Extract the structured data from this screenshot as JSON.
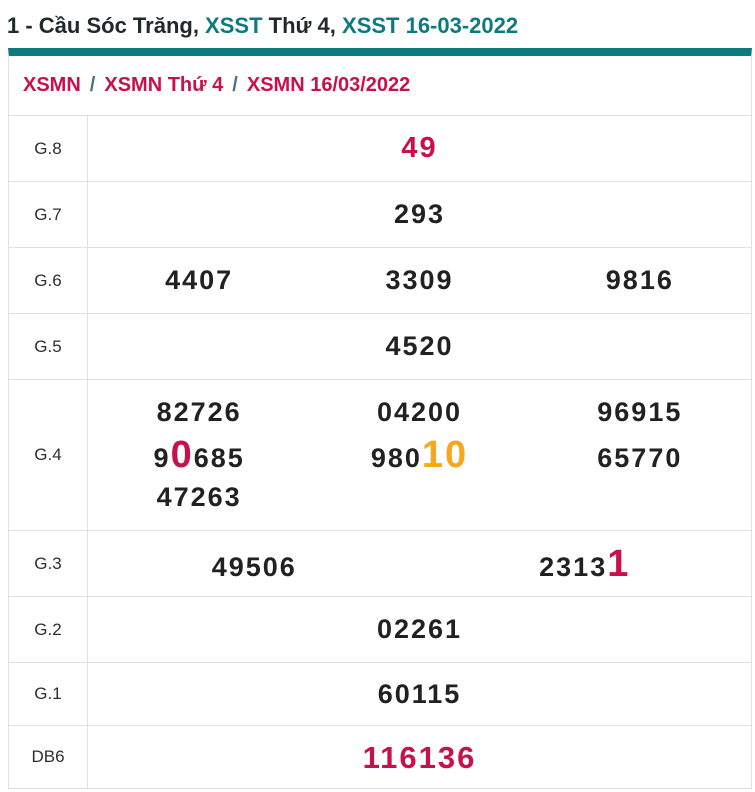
{
  "title": {
    "prefix": "1 - Cầu Sóc Trăng, ",
    "link1": "XSST",
    "middle": " Thứ 4, ",
    "link2": "XSST 16-03-2022"
  },
  "breadcrumb": {
    "items": [
      "XSMN",
      "XSMN Thứ 4",
      "XSMN 16/03/2022"
    ],
    "separator": "/"
  },
  "results": {
    "g8": {
      "label": "G.8",
      "value": "49"
    },
    "g7": {
      "label": "G.7",
      "value": "293"
    },
    "g6": {
      "label": "G.6",
      "v1": "4407",
      "v2": "3309",
      "v3": "9816"
    },
    "g5": {
      "label": "G.5",
      "value": "4520"
    },
    "g4": {
      "label": "G.4",
      "v1": "82726",
      "v2": "04200",
      "v3": "96915",
      "v4_pre": "9",
      "v4_hl": "0",
      "v4_post": "685",
      "v5_pre": "980",
      "v5_hl": "10",
      "v6": "65770",
      "v7": "47263"
    },
    "g3": {
      "label": "G.3",
      "v1": "49506",
      "v2_pre": "2313",
      "v2_hl": "1"
    },
    "g2": {
      "label": "G.2",
      "value": "02261"
    },
    "g1": {
      "label": "G.1",
      "value": "60115"
    },
    "db6": {
      "label": "DB6",
      "value": "116136"
    }
  },
  "colors": {
    "teal_accent": "#0d7a80",
    "crimson_accent": "#c8104a",
    "orange_highlight": "#faa61c",
    "number_dark": "#212121",
    "border": "#e0e0e0"
  }
}
